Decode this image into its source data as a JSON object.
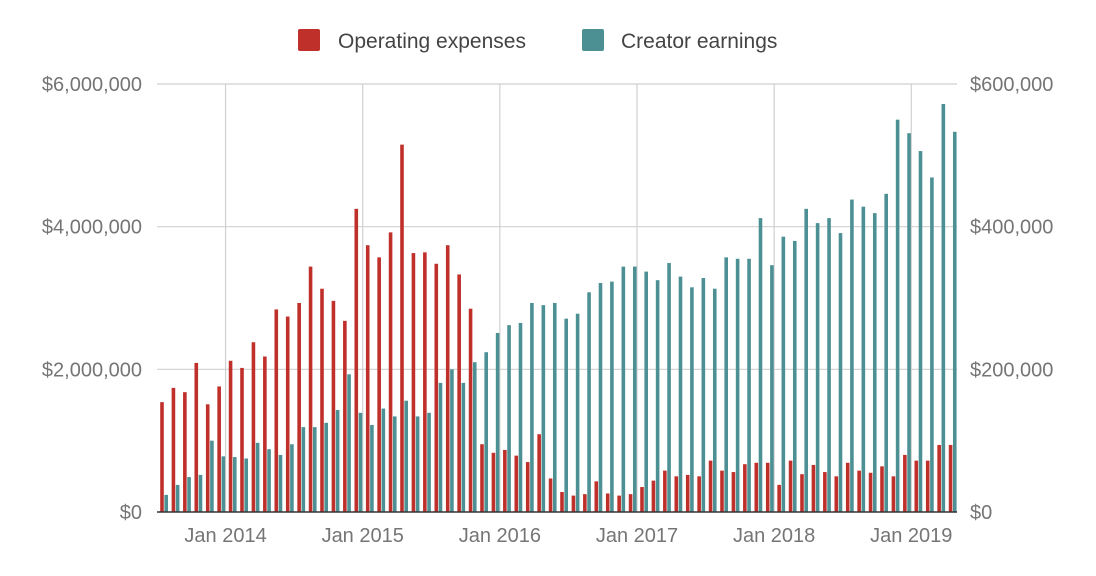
{
  "colors": {
    "operating_expenses": "#c0302b",
    "creator_earnings": "#4d9094",
    "grid": "#d0d0d0",
    "axis": "#333333",
    "text": "#757575"
  },
  "chart_data": {
    "type": "bar",
    "legend_position": "top",
    "grid": true,
    "series": [
      {
        "name": "Operating expenses",
        "axis": "left",
        "values": [
          1540000,
          1740000,
          1680000,
          2090000,
          1510000,
          1760000,
          2120000,
          2020000,
          2380000,
          2180000,
          2840000,
          2740000,
          2930000,
          3440000,
          3130000,
          2960000,
          2680000,
          4250000,
          3740000,
          3570000,
          3920000,
          5150000,
          3630000,
          3640000,
          3480000,
          3740000,
          3330000,
          2850000,
          950000,
          830000,
          870000,
          790000,
          700000,
          1090000,
          470000,
          280000,
          230000,
          250000,
          430000,
          260000,
          230000,
          250000,
          350000,
          440000,
          580000,
          500000,
          520000,
          500000,
          720000,
          580000,
          560000,
          670000,
          690000,
          690000,
          380000,
          720000,
          530000,
          660000,
          560000,
          500000,
          690000,
          580000,
          550000,
          640000,
          500000,
          800000,
          720000,
          720000,
          940000,
          940000
        ]
      },
      {
        "name": "Creator earnings",
        "axis": "right",
        "values": [
          24000,
          38000,
          49000,
          52000,
          100000,
          78000,
          77000,
          75000,
          97000,
          88000,
          80000,
          95000,
          119000,
          119000,
          125000,
          143000,
          193000,
          139000,
          122000,
          145000,
          134000,
          156000,
          134000,
          139000,
          181000,
          200000,
          181000,
          210000,
          224000,
          251000,
          262000,
          265000,
          293000,
          290000,
          293000,
          271000,
          278000,
          308000,
          321000,
          323000,
          344000,
          344000,
          337000,
          325000,
          349000,
          330000,
          315000,
          328000,
          313000,
          357000,
          355000,
          355000,
          412000,
          346000,
          386000,
          380000,
          425000,
          405000,
          412000,
          391000,
          438000,
          428000,
          419000,
          446000,
          550000,
          531000,
          506000,
          469000,
          572000,
          533000
        ]
      }
    ],
    "x_ticks": [
      "Jan 2014",
      "Jan 2015",
      "Jan 2016",
      "Jan 2017",
      "Jan 2018",
      "Jan 2019"
    ],
    "y_left": {
      "ticks": [
        "$0",
        "$2,000,000",
        "$4,000,000",
        "$6,000,000"
      ],
      "range": [
        0,
        6000000
      ]
    },
    "y_right": {
      "ticks": [
        "$0",
        "$200,000",
        "$400,000",
        "$600,000"
      ],
      "range": [
        0,
        600000
      ]
    }
  }
}
